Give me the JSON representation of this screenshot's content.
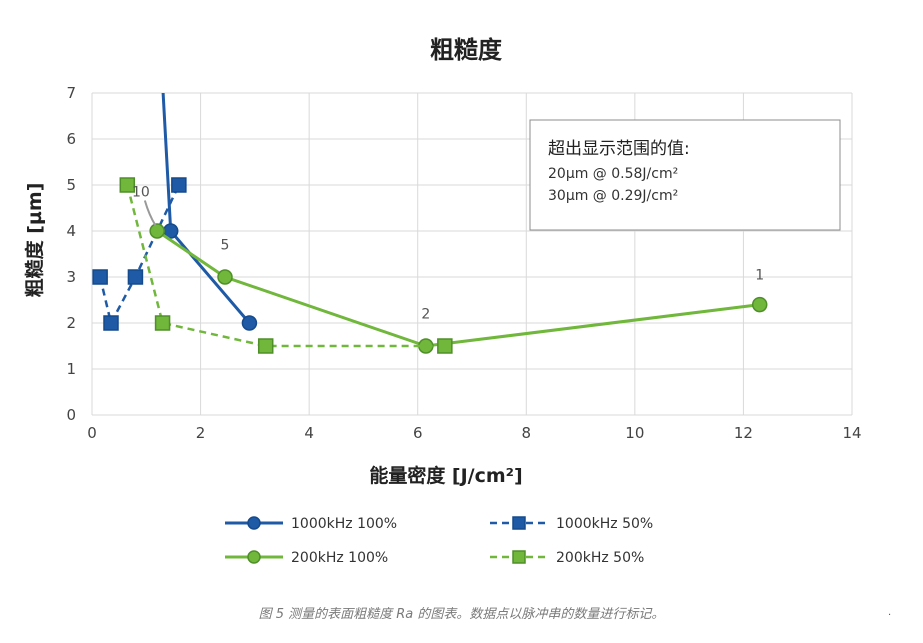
{
  "chart_data": {
    "type": "line",
    "title": "粗糙度",
    "xlabel": "能量密度 [J/cm²]",
    "ylabel": "粗糙度 [µm]",
    "xlim": [
      0,
      14
    ],
    "ylim": [
      0,
      7
    ],
    "xticks": [
      "0",
      "2",
      "4",
      "6",
      "8",
      "10",
      "12",
      "14"
    ],
    "yticks": [
      "0",
      "1",
      "2",
      "3",
      "4",
      "5",
      "6",
      "7"
    ],
    "grid": true,
    "legend_position": "bottom",
    "series": [
      {
        "name": "1000kHz 100%",
        "color": "#1f5aa6",
        "dash": "solid",
        "marker": "circle",
        "points": [
          [
            1.45,
            4.0
          ],
          [
            2.9,
            2.0
          ]
        ],
        "offchart": [
          1.3,
          7.2
        ]
      },
      {
        "name": "1000kHz 50%",
        "color": "#1f5aa6",
        "dash": "dashed",
        "marker": "square",
        "points": [
          [
            0.15,
            3.0
          ],
          [
            0.35,
            2.0
          ],
          [
            0.8,
            3.0
          ],
          [
            1.6,
            5.0
          ]
        ]
      },
      {
        "name": "200kHz 100%",
        "color": "#70b73c",
        "dash": "solid",
        "marker": "circle",
        "points": [
          [
            1.2,
            4.0
          ],
          [
            2.45,
            3.0
          ],
          [
            6.15,
            1.5
          ],
          [
            12.3,
            2.4
          ]
        ]
      },
      {
        "name": "200kHz 50%",
        "color": "#70b73c",
        "dash": "dashed",
        "marker": "square",
        "points": [
          [
            0.65,
            5.0
          ],
          [
            1.3,
            2.0
          ],
          [
            3.2,
            1.5
          ],
          [
            6.5,
            1.5
          ]
        ]
      }
    ],
    "annotations": [
      {
        "text": "10",
        "x": 0.9,
        "y": 4.75
      },
      {
        "text": "5",
        "x": 2.45,
        "y": 3.6
      },
      {
        "text": "2",
        "x": 6.15,
        "y": 2.1
      },
      {
        "text": "1",
        "x": 12.3,
        "y": 2.95
      }
    ],
    "infobox": {
      "title": "超出显示范围的值:",
      "lines": [
        "20µm @ 0.58J/cm²",
        "30µm @ 0.29J/cm²"
      ]
    }
  },
  "caption": "图 5 测量的表面粗糙度 Ra 的图表。数据点以脉冲串的数量进行标记。",
  "corner_mark": "."
}
